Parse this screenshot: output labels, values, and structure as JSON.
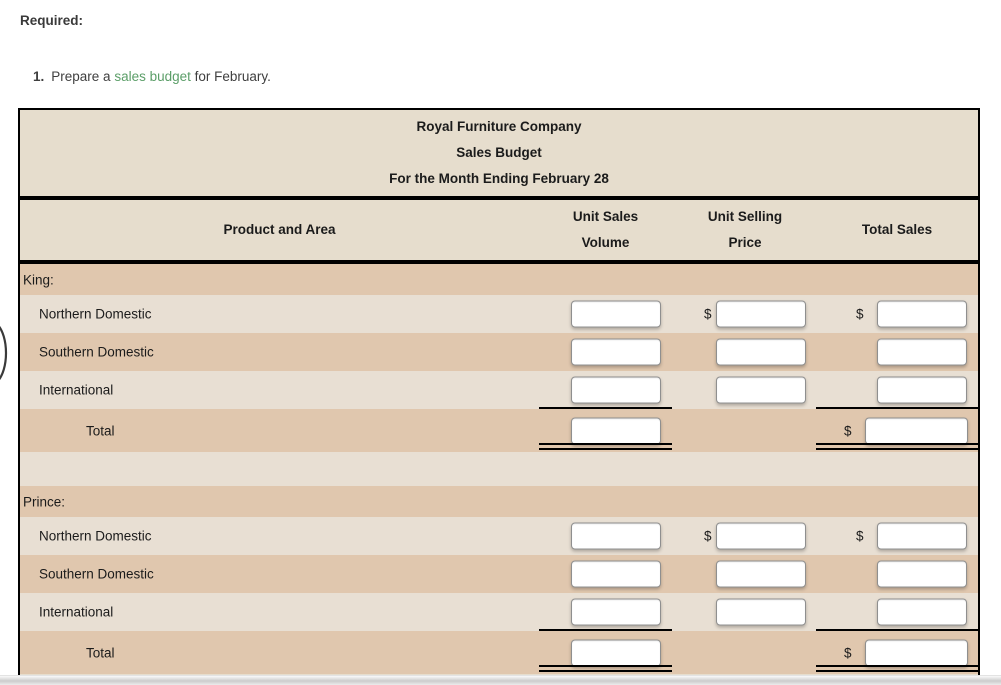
{
  "colors": {
    "header_bg": "#e6ddcd",
    "row_light": "#e8dfd3",
    "row_dark": "#e0c7ae",
    "link_green": "#5b9e68",
    "text_dark": "#3a3a3a",
    "table_text": "#1b1b1b"
  },
  "page": {
    "required_label": "Required:",
    "item_number": "1.",
    "instruction_prefix": "Prepare a ",
    "instruction_link": "sales budget",
    "instruction_suffix": " for February."
  },
  "table": {
    "title_lines": [
      "Royal Furniture Company",
      "Sales Budget",
      "For the Month Ending February 28"
    ],
    "columns": {
      "product_area": "Product and Area",
      "unit_sales_line1": "Unit Sales",
      "unit_sales_line2": "Volume",
      "unit_price_line1": "Unit Selling",
      "unit_price_line2": "Price",
      "total_sales": "Total Sales"
    },
    "currency_symbol": "$",
    "sections": [
      {
        "header": "King:",
        "products": [
          "Northern Domestic",
          "Southern Domestic",
          "International"
        ],
        "total_label": "Total"
      },
      {
        "header": "Prince:",
        "products": [
          "Northern Domestic",
          "Southern Domestic",
          "International"
        ],
        "total_label": "Total"
      }
    ],
    "inputs_empty_value": ""
  }
}
